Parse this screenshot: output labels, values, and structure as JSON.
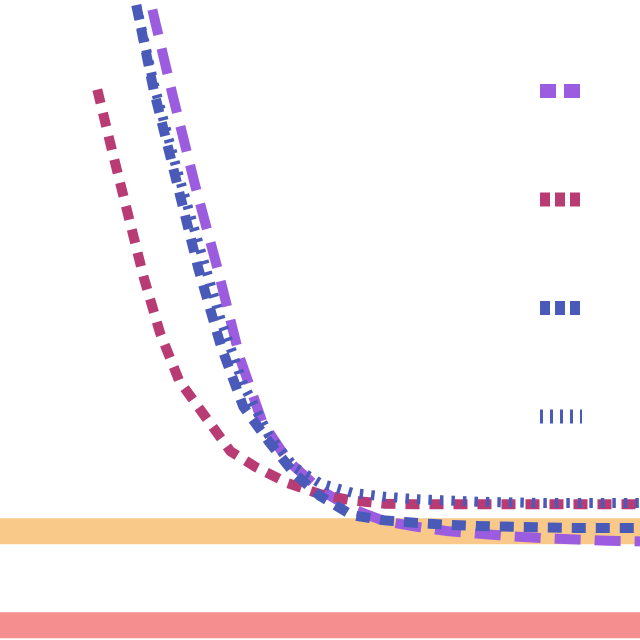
{
  "chart_data": {
    "type": "line",
    "title": "",
    "xlabel": "",
    "ylabel": "",
    "grid": false,
    "legend": {
      "placement": "right",
      "labels": []
    },
    "xlim": [
      0,
      100
    ],
    "ylim": [
      0,
      100
    ],
    "hlines": [
      {
        "y": 17,
        "color": "#f9c98a"
      },
      {
        "y": 2.3,
        "color": "#f58e8e"
      }
    ],
    "series": [
      {
        "color": "#9b5ce0",
        "dash": "long",
        "x": [
          23.8,
          27,
          30.5,
          34,
          37.5,
          41,
          45,
          50,
          55,
          60,
          65,
          70,
          75,
          80,
          85,
          90,
          95,
          100
        ],
        "y": [
          98.5,
          85,
          71,
          58,
          44,
          34,
          28,
          23.5,
          20.5,
          18.6,
          17.7,
          17.0,
          16.6,
          16.2,
          15.9,
          15.7,
          15.5,
          15.4
        ]
      },
      {
        "color": "#b83b73",
        "dash": "medium",
        "x": [
          15.2,
          17.5,
          20,
          22.5,
          25,
          28,
          32,
          36,
          40,
          45,
          50,
          55,
          60,
          65,
          70,
          75,
          80,
          85,
          90,
          95,
          100
        ],
        "y": [
          86,
          76.5,
          66.5,
          56.5,
          48,
          40.5,
          35,
          29.5,
          27,
          24.5,
          22.8,
          21.8,
          21.3,
          21.2,
          21.2,
          21.2,
          21.2,
          21.2,
          21.2,
          21.2,
          21.2
        ]
      },
      {
        "color": "#4a5ab8",
        "dash": "medium",
        "x": [
          21.3,
          24,
          27.5,
          31,
          34.5,
          38,
          42,
          46,
          50,
          55,
          60,
          65,
          70,
          75,
          80,
          85,
          90,
          95,
          100
        ],
        "y": [
          99.2,
          86,
          72,
          58,
          46,
          36.5,
          31,
          26,
          22.5,
          19.5,
          18.7,
          18.3,
          18.0,
          17.8,
          17.7,
          17.6,
          17.5,
          17.5,
          17.5
        ]
      },
      {
        "color": "#4a5ab8",
        "dash": "dotted",
        "x": [
          21.3,
          24,
          27.5,
          31,
          34.5,
          38,
          42,
          46,
          50,
          55,
          60,
          65,
          70,
          75,
          80,
          85,
          90,
          95,
          100
        ],
        "y": [
          99.2,
          87,
          74,
          62,
          50,
          40,
          32,
          27,
          24.5,
          23,
          22.4,
          22.0,
          21.8,
          21.6,
          21.5,
          21.4,
          21.4,
          21.4,
          21.4
        ]
      }
    ]
  }
}
